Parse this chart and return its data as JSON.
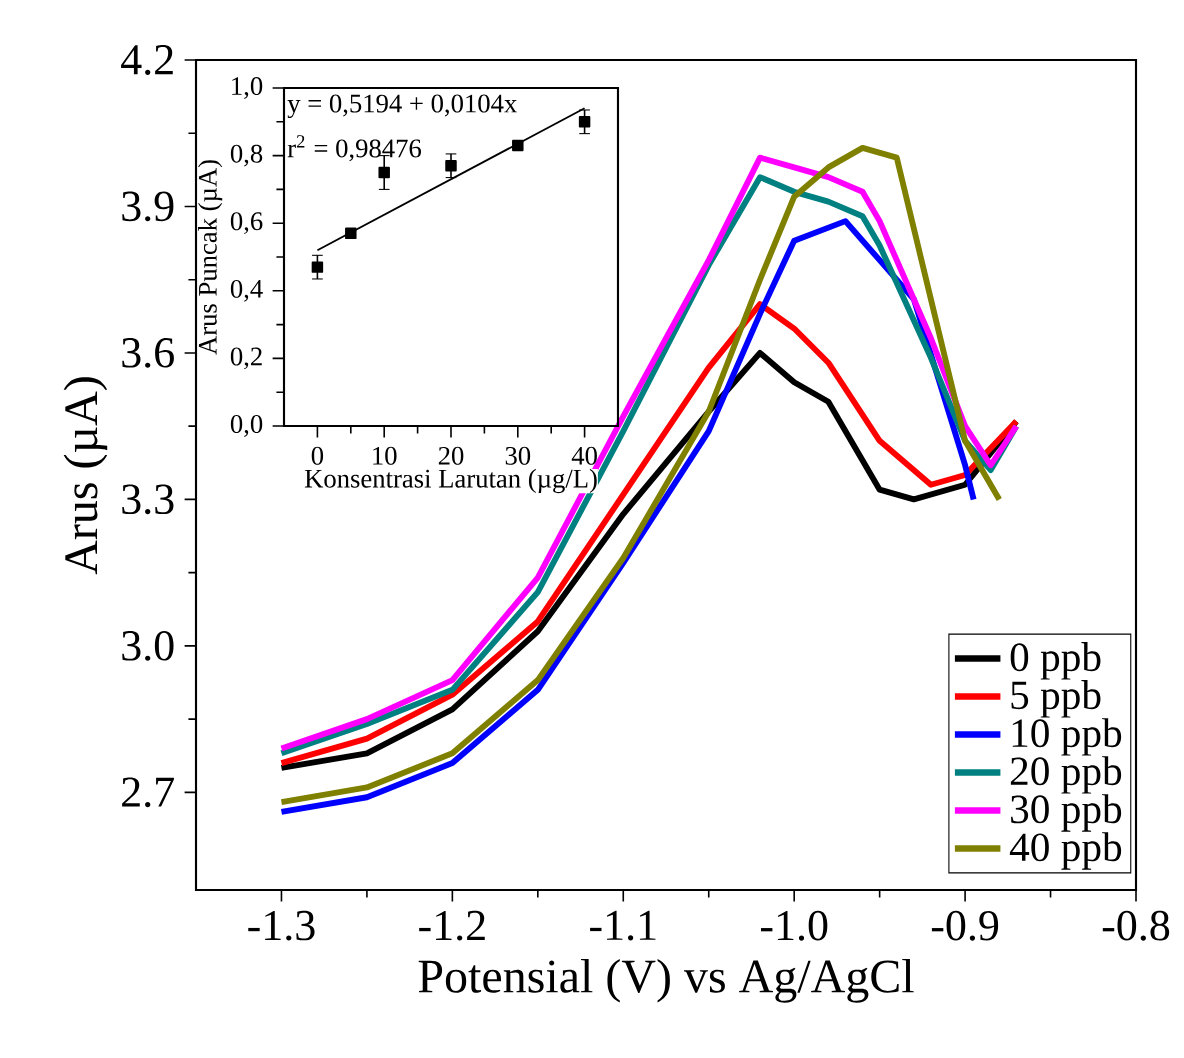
{
  "chart_data": [
    {
      "type": "line",
      "xlabel": "Potensial (V) vs Ag/AgCl",
      "ylabel": "Arus (µA)",
      "xlim": [
        -1.35,
        -0.8
      ],
      "ylim": [
        2.5,
        4.2
      ],
      "xticks": [
        -1.3,
        -1.2,
        -1.1,
        {
          "value": -1.0,
          "label": "-1.0"
        },
        -0.9,
        -0.8
      ],
      "yticks": [
        2.7,
        {
          "value": 3.0,
          "label": "3.0"
        },
        3.3,
        3.6,
        3.9,
        4.2
      ],
      "legend": "bottom right",
      "line_style": "solid",
      "marker": "none",
      "series": [
        {
          "name": "0 ppb",
          "color": "#000000",
          "x": [
            -1.3,
            -1.25,
            -1.2,
            -1.15,
            -1.1,
            -1.05,
            -1.02,
            -1.0,
            -0.98,
            -0.95,
            -0.93,
            -0.9,
            -0.87
          ],
          "values": [
            2.75,
            2.78,
            2.87,
            3.03,
            3.27,
            3.48,
            3.6,
            3.54,
            3.5,
            3.32,
            3.3,
            3.33,
            3.46
          ]
        },
        {
          "name": "5 ppb",
          "color": "#ff0000",
          "x": [
            -1.3,
            -1.25,
            -1.2,
            -1.15,
            -1.1,
            -1.05,
            -1.02,
            -1.0,
            -0.98,
            -0.95,
            -0.92,
            -0.9,
            -0.87
          ],
          "values": [
            2.76,
            2.81,
            2.9,
            3.05,
            3.31,
            3.57,
            3.7,
            3.65,
            3.58,
            3.42,
            3.33,
            3.35,
            3.46
          ]
        },
        {
          "name": "10 ppb",
          "color": "#0000ff",
          "x": [
            -1.3,
            -1.25,
            -1.2,
            -1.15,
            -1.1,
            -1.05,
            -1.02,
            -1.0,
            -0.97,
            -0.95,
            -0.93,
            -0.9,
            -0.895
          ],
          "values": [
            2.66,
            2.69,
            2.76,
            2.91,
            3.17,
            3.44,
            3.68,
            3.83,
            3.87,
            3.79,
            3.71,
            3.37,
            3.3
          ]
        },
        {
          "name": "20 ppb",
          "color": "#008080",
          "x": [
            -1.3,
            -1.25,
            -1.2,
            -1.15,
            -1.1,
            -1.05,
            -1.02,
            -1.0,
            -0.98,
            -0.96,
            -0.95,
            -0.92,
            -0.9,
            -0.885,
            -0.87
          ],
          "values": [
            2.78,
            2.84,
            2.91,
            3.11,
            3.44,
            3.78,
            3.96,
            3.93,
            3.91,
            3.88,
            3.82,
            3.59,
            3.42,
            3.36,
            3.45
          ]
        },
        {
          "name": "30 ppb",
          "color": "#ff00ff",
          "x": [
            -1.3,
            -1.25,
            -1.2,
            -1.15,
            -1.1,
            -1.05,
            -1.02,
            -1.0,
            -0.98,
            -0.96,
            -0.95,
            -0.92,
            -0.9,
            -0.885,
            -0.87
          ],
          "values": [
            2.79,
            2.85,
            2.93,
            3.14,
            3.47,
            3.79,
            4.0,
            3.98,
            3.96,
            3.93,
            3.87,
            3.63,
            3.45,
            3.37,
            3.45
          ]
        },
        {
          "name": "40 ppb",
          "color": "#808000",
          "x": [
            -1.3,
            -1.25,
            -1.2,
            -1.15,
            -1.1,
            -1.05,
            -1.02,
            -1.0,
            -0.98,
            -0.96,
            -0.94,
            -0.92,
            -0.9,
            -0.88
          ],
          "values": [
            2.68,
            2.71,
            2.78,
            2.93,
            3.18,
            3.48,
            3.75,
            3.92,
            3.98,
            4.02,
            4.0,
            3.71,
            3.42,
            3.3
          ]
        }
      ]
    },
    {
      "type": "scatter",
      "xlabel": "Konsentrasi Larutan (µg/L)",
      "ylabel": "Arus Puncak (µA)",
      "xlim": [
        -5,
        45
      ],
      "ylim": [
        0,
        1
      ],
      "xticks": [
        0,
        10,
        20,
        30,
        40
      ],
      "yticks": [
        {
          "value": 0,
          "label": "0,0"
        },
        {
          "value": 0.2,
          "label": "0,2"
        },
        {
          "value": 0.4,
          "label": "0,4"
        },
        {
          "value": 0.6,
          "label": "0,6"
        },
        {
          "value": 0.8,
          "label": "0,8"
        },
        {
          "value": 1.0,
          "label": "1,0"
        }
      ],
      "marker": "square",
      "annotations": [
        "y = 0,5194 + 0,0104x",
        "r$^{2}$ = 0,98476"
      ],
      "series": [
        {
          "color": "#000000",
          "x": [
            0,
            5,
            10,
            20,
            30,
            40
          ],
          "values": [
            0.47,
            0.57,
            0.75,
            0.77,
            0.83,
            0.9
          ],
          "errors": [
            0.035,
            0.005,
            0.05,
            0.035,
            0.008,
            0.035
          ]
        },
        {
          "type": "line",
          "marker": "none",
          "color": "#000000",
          "x": [
            0,
            40
          ],
          "values": [
            0.52,
            0.94
          ]
        }
      ]
    }
  ]
}
